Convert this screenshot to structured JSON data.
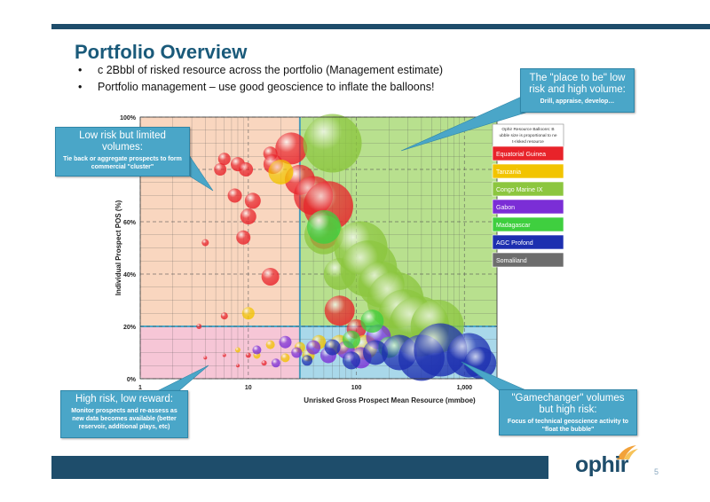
{
  "slide": {
    "title": "Portfolio Overview",
    "bullets": [
      "c 2Bbbl of risked resource across the portfolio (Management estimate)",
      "Portfolio management – use good geoscience to inflate the balloons!"
    ],
    "page_number": "5",
    "logo_text": "ophir",
    "brand_color": "#1e4d6b",
    "accent_color": "#4aa6c8"
  },
  "callouts": {
    "top_left": {
      "heading": "Low risk but limited volumes:",
      "sub": "Tie back or aggregate prospects to form commercial \"cluster\""
    },
    "top_right": {
      "heading": "The \"place to be\" low risk and high volume:",
      "sub": "Drill, appraise, develop…"
    },
    "bottom_left": {
      "heading": "High risk, low reward:",
      "sub": "Monitor prospects and re-assess as new data becomes available (better reservoir, additional plays, etc)"
    },
    "bottom_right": {
      "heading": "\"Gamechanger\" volumes but high risk:",
      "sub": "Focus of technical geoscience activity to \"float the bubble\""
    }
  },
  "chart_data": {
    "type": "scatter",
    "xlabel": "Unrisked Gross Prospect Mean Resource (mmboe)",
    "ylabel": "Individual Prospect POS (%)",
    "x_scale": "log",
    "xlim": [
      1,
      2000
    ],
    "ylim": [
      0,
      100
    ],
    "x_ticks": [
      "1",
      "10",
      "100",
      "1,000"
    ],
    "y_ticks": [
      "0%",
      "20%",
      "40%",
      "60%",
      "100%"
    ],
    "grid": true,
    "quadrant_divisions": {
      "x": 30,
      "y": 20
    },
    "quadrant_colors": {
      "top_left": "#f9d6bf",
      "top_right": "#b8e08e",
      "bottom_left": "#f6c6d6",
      "bottom_right": "#a9d8ea"
    },
    "legend": {
      "position": "right",
      "note": "Ophir Resource Balloons: Bubble size is proportional to net-risked resource",
      "entries": [
        {
          "name": "Equatorial Guinea",
          "color": "#e8232a"
        },
        {
          "name": "Tanzania",
          "color": "#f2c400"
        },
        {
          "name": "Congo Marine IX",
          "color": "#8cc63f"
        },
        {
          "name": "Gabon",
          "color": "#7b2ed6"
        },
        {
          "name": "Madagascar",
          "color": "#3fcf3f"
        },
        {
          "name": "AGC Profond",
          "color": "#1d2fb0"
        },
        {
          "name": "Somaliland",
          "color": "#6d6d6d"
        }
      ]
    },
    "series": [
      {
        "name": "Equatorial Guinea",
        "color": "#e8232a",
        "points": [
          {
            "x": 3.5,
            "y": 77,
            "r": 4
          },
          {
            "x": 4,
            "y": 52,
            "r": 4
          },
          {
            "x": 5.5,
            "y": 80,
            "r": 7
          },
          {
            "x": 6,
            "y": 84,
            "r": 7
          },
          {
            "x": 8,
            "y": 82,
            "r": 8
          },
          {
            "x": 9.5,
            "y": 80,
            "r": 8
          },
          {
            "x": 7.5,
            "y": 70,
            "r": 8
          },
          {
            "x": 11,
            "y": 68,
            "r": 9
          },
          {
            "x": 10,
            "y": 62,
            "r": 9
          },
          {
            "x": 9,
            "y": 54,
            "r": 8
          },
          {
            "x": 16,
            "y": 86,
            "r": 8
          },
          {
            "x": 17,
            "y": 82,
            "r": 11
          },
          {
            "x": 25,
            "y": 88,
            "r": 18
          },
          {
            "x": 30,
            "y": 76,
            "r": 17
          },
          {
            "x": 40,
            "y": 70,
            "r": 22
          },
          {
            "x": 55,
            "y": 66,
            "r": 28
          },
          {
            "x": 50,
            "y": 55,
            "r": 16
          },
          {
            "x": 16,
            "y": 39,
            "r": 10
          },
          {
            "x": 6,
            "y": 24,
            "r": 4
          },
          {
            "x": 3.5,
            "y": 20,
            "r": 3
          },
          {
            "x": 70,
            "y": 26,
            "r": 17
          },
          {
            "x": 100,
            "y": 19,
            "r": 11
          },
          {
            "x": 4,
            "y": 8,
            "r": 2
          },
          {
            "x": 6,
            "y": 9,
            "r": 2
          },
          {
            "x": 8,
            "y": 5,
            "r": 2
          },
          {
            "x": 10,
            "y": 9,
            "r": 3
          },
          {
            "x": 14,
            "y": 6,
            "r": 3
          }
        ]
      },
      {
        "name": "Tanzania",
        "color": "#f2c400",
        "points": [
          {
            "x": 20,
            "y": 79,
            "r": 14
          },
          {
            "x": 10,
            "y": 25,
            "r": 7
          },
          {
            "x": 8,
            "y": 11,
            "r": 3
          },
          {
            "x": 12,
            "y": 9,
            "r": 4
          },
          {
            "x": 16,
            "y": 13,
            "r": 5
          },
          {
            "x": 22,
            "y": 8,
            "r": 5
          },
          {
            "x": 30,
            "y": 12,
            "r": 6
          },
          {
            "x": 36,
            "y": 9,
            "r": 7
          },
          {
            "x": 45,
            "y": 14,
            "r": 8
          },
          {
            "x": 70,
            "y": 13,
            "r": 11
          },
          {
            "x": 120,
            "y": 12,
            "r": 14
          }
        ]
      },
      {
        "name": "Congo Marine IX",
        "color": "#8cc63f",
        "points": [
          {
            "x": 60,
            "y": 90,
            "r": 33
          },
          {
            "x": 50,
            "y": 55,
            "r": 22
          },
          {
            "x": 70,
            "y": 40,
            "r": 18
          },
          {
            "x": 110,
            "y": 50,
            "r": 30
          },
          {
            "x": 130,
            "y": 42,
            "r": 32
          },
          {
            "x": 170,
            "y": 36,
            "r": 26
          },
          {
            "x": 230,
            "y": 30,
            "r": 32
          },
          {
            "x": 280,
            "y": 24,
            "r": 30
          },
          {
            "x": 380,
            "y": 20,
            "r": 34
          },
          {
            "x": 560,
            "y": 20,
            "r": 30
          }
        ]
      },
      {
        "name": "Gabon",
        "color": "#7b2ed6",
        "points": [
          {
            "x": 12,
            "y": 11,
            "r": 5
          },
          {
            "x": 18,
            "y": 6,
            "r": 5
          },
          {
            "x": 22,
            "y": 14,
            "r": 7
          },
          {
            "x": 28,
            "y": 10,
            "r": 6
          },
          {
            "x": 40,
            "y": 12,
            "r": 8
          },
          {
            "x": 55,
            "y": 9,
            "r": 9
          },
          {
            "x": 80,
            "y": 11,
            "r": 10
          },
          {
            "x": 110,
            "y": 8,
            "r": 12
          },
          {
            "x": 160,
            "y": 16,
            "r": 14
          }
        ]
      },
      {
        "name": "Madagascar",
        "color": "#3fcf3f",
        "points": [
          {
            "x": 50,
            "y": 58,
            "r": 19
          },
          {
            "x": 90,
            "y": 15,
            "r": 10
          },
          {
            "x": 140,
            "y": 22,
            "r": 13
          },
          {
            "x": 200,
            "y": 12,
            "r": 12
          }
        ]
      },
      {
        "name": "AGC Profond",
        "color": "#1d2fb0",
        "points": [
          {
            "x": 35,
            "y": 7,
            "r": 6
          },
          {
            "x": 60,
            "y": 12,
            "r": 9
          },
          {
            "x": 90,
            "y": 7,
            "r": 10
          },
          {
            "x": 150,
            "y": 10,
            "r": 14
          },
          {
            "x": 250,
            "y": 10,
            "r": 20
          },
          {
            "x": 400,
            "y": 8,
            "r": 26
          },
          {
            "x": 600,
            "y": 11,
            "r": 30
          },
          {
            "x": 1100,
            "y": 9,
            "r": 25
          },
          {
            "x": 1400,
            "y": 6,
            "r": 18
          }
        ]
      },
      {
        "name": "Somaliland",
        "color": "#6d6d6d",
        "points": []
      }
    ]
  }
}
